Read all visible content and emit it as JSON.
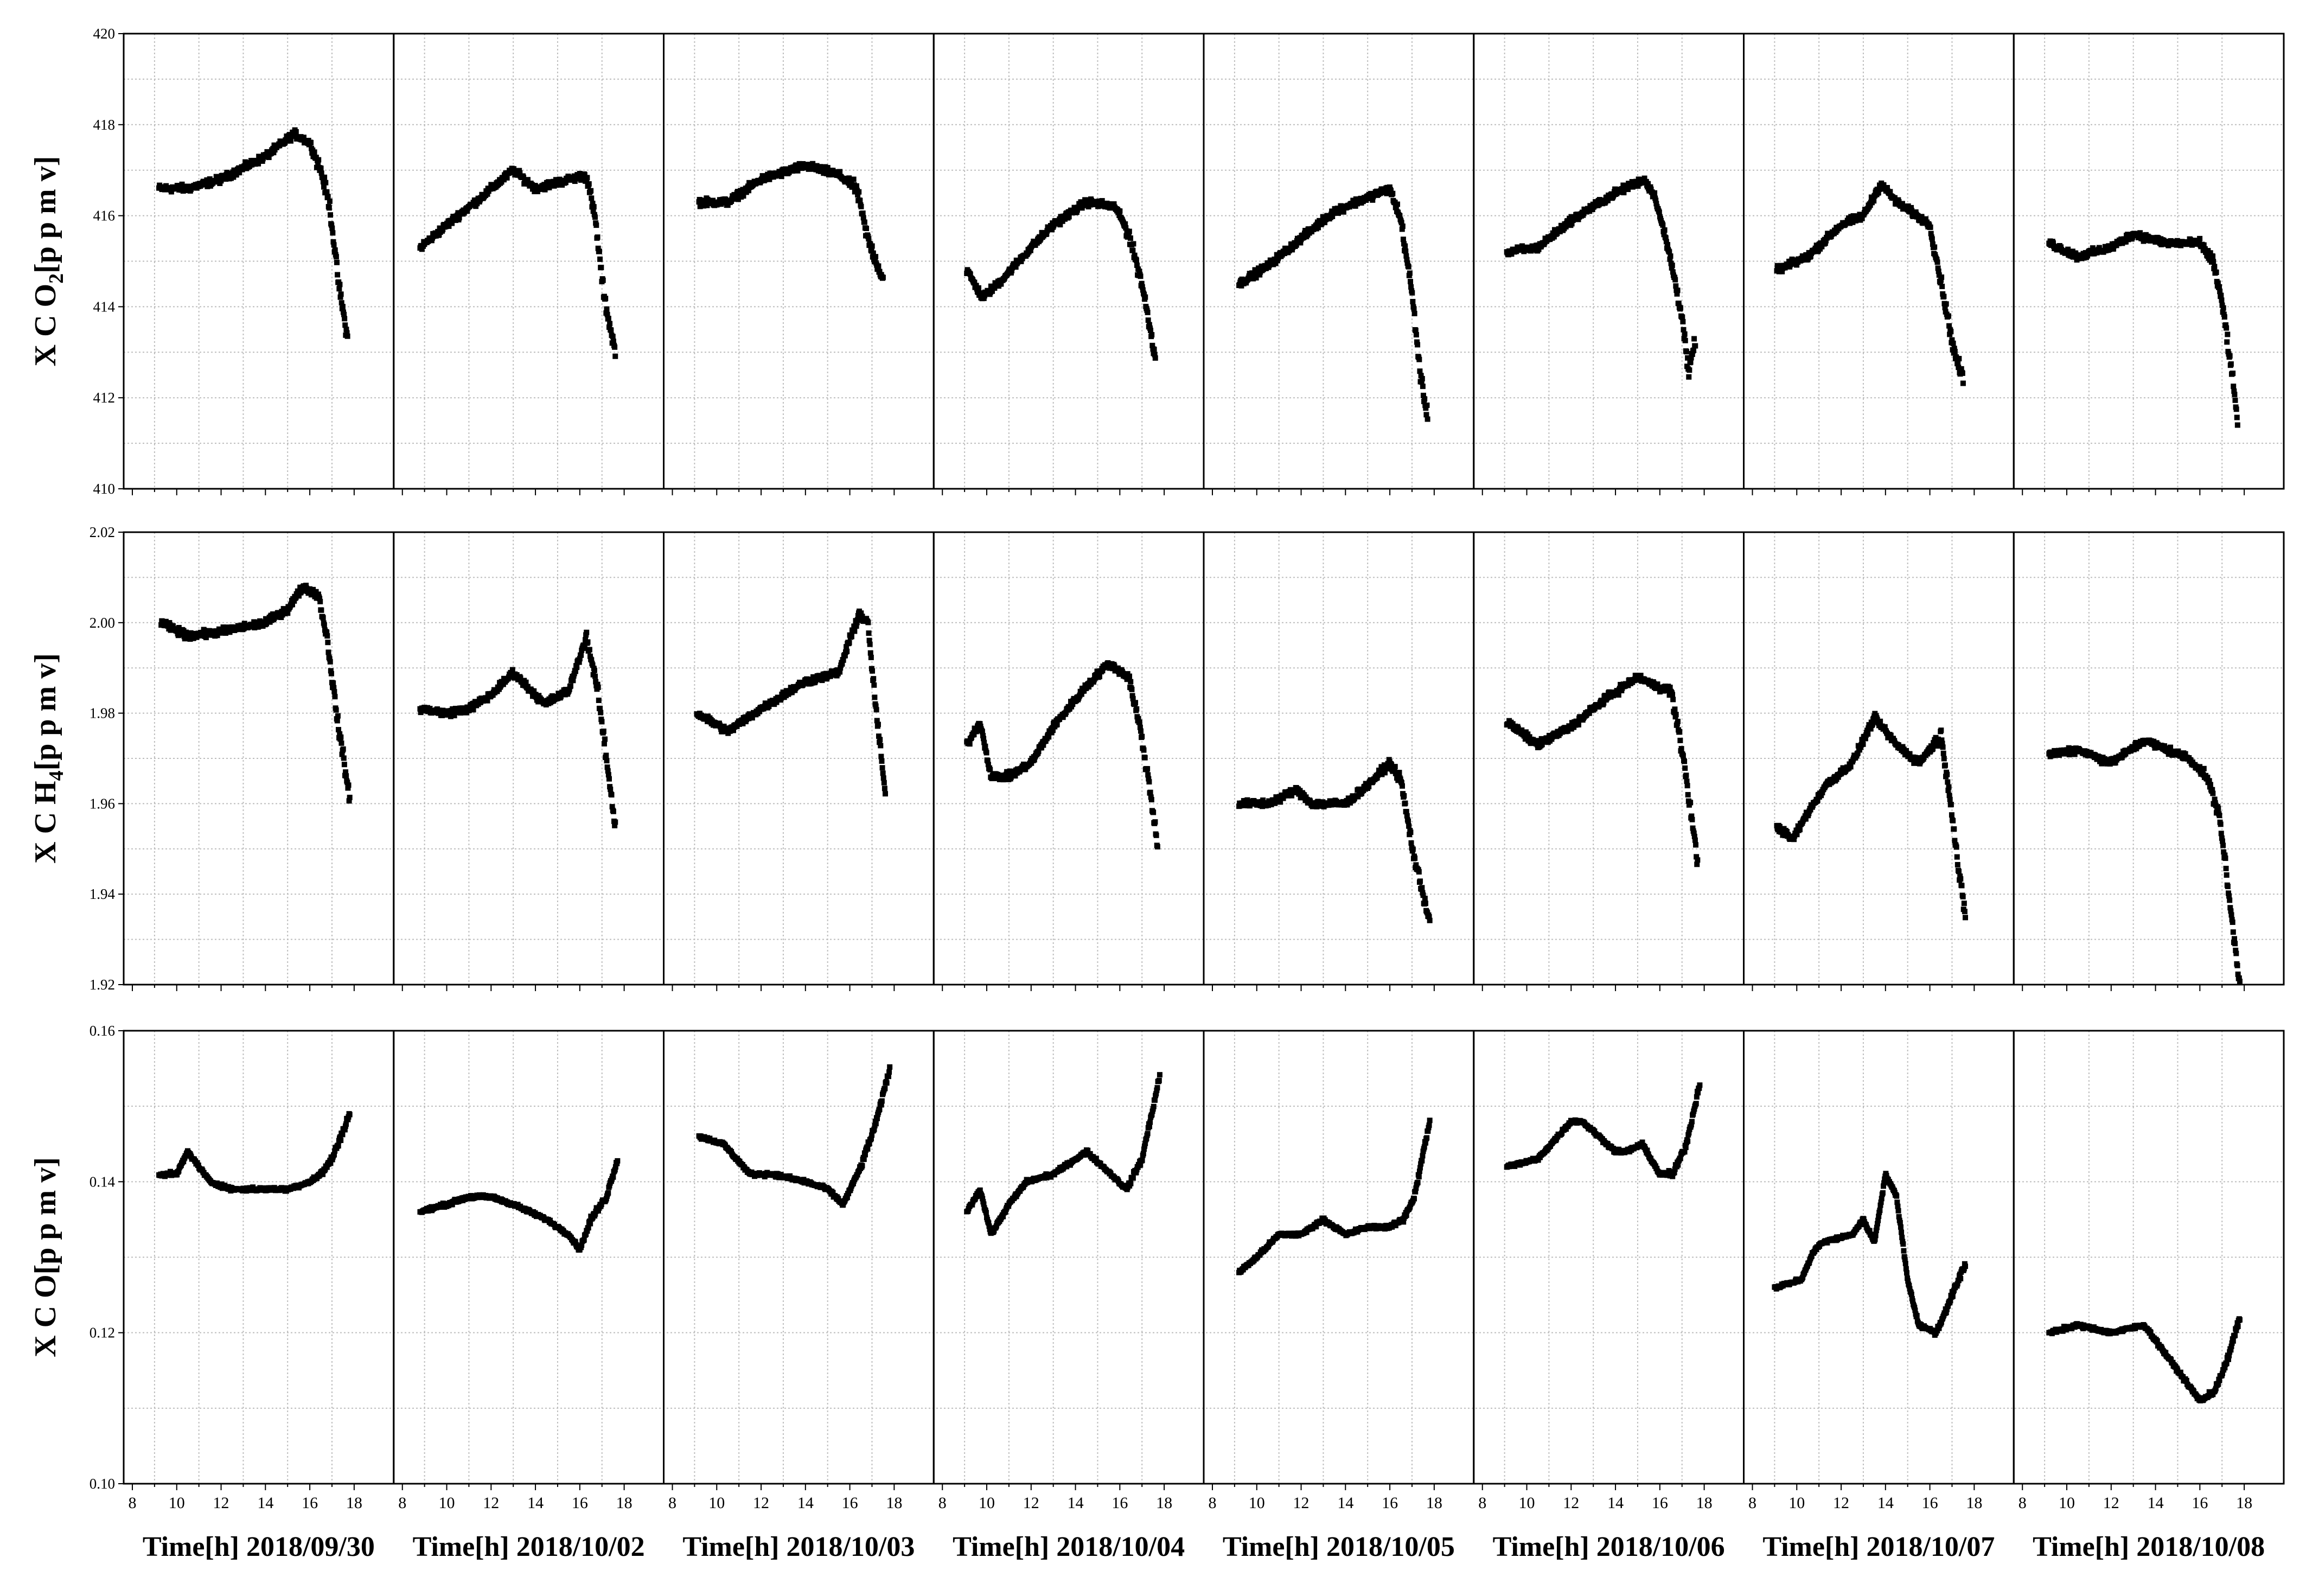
{
  "chart_data": {
    "type": "scatter",
    "layout": "small-multiples grid: 3 rows (species) x 8 columns (days)",
    "x_ticks": [
      8,
      10,
      12,
      14,
      16,
      18
    ],
    "xlim": [
      8,
      19
    ],
    "grid": true,
    "marker": "square",
    "color": "#000000",
    "dates": [
      "Time[h] 2018/09/30",
      "Time[h] 2018/10/02",
      "Time[h] 2018/10/03",
      "Time[h] 2018/10/04",
      "Time[h] 2018/10/05",
      "Time[h] 2018/10/06",
      "Time[h] 2018/10/07",
      "Time[h] 2018/10/08"
    ],
    "rows": [
      {
        "ylabel_main": "X C O",
        "ylabel_sub": "2",
        "ylabel_unit": "[p p m v]",
        "ylim": [
          410,
          420
        ],
        "y_ticks": [
          410,
          412,
          414,
          416,
          418,
          420
        ],
        "y_tick_labels": [
          "410",
          "412",
          "414",
          "416",
          "418",
          "420"
        ],
        "days": [
          {
            "start": 9.2,
            "end": 17.7,
            "x": [
              9.2,
              10.5,
              12,
              14,
              15.3,
              16,
              16.5,
              16.9,
              17.3,
              17.7
            ],
            "y": [
              416.6,
              416.6,
              416.8,
              417.3,
              417.8,
              417.6,
              417.0,
              416.2,
              414.5,
              413.3
            ]
          },
          {
            "start": 8.8,
            "end": 17.6,
            "x": [
              8.8,
              10.5,
              11.3,
              13,
              14,
              16.3,
              16.7,
              17.1,
              17.6
            ],
            "y": [
              415.3,
              416.0,
              416.3,
              417.0,
              416.6,
              416.9,
              415.9,
              414.2,
              413.0
            ]
          },
          {
            "start": 9.2,
            "end": 17.5,
            "x": [
              9.2,
              10.5,
              12,
              14,
              15.5,
              16.3,
              16.8,
              17.5
            ],
            "y": [
              416.3,
              416.3,
              416.8,
              417.1,
              416.9,
              416.6,
              415.5,
              414.6
            ]
          },
          {
            "start": 9.1,
            "end": 17.6,
            "x": [
              9.1,
              9.8,
              10.5,
              12,
              13,
              14.5,
              15.8,
              16.4,
              17,
              17.6
            ],
            "y": [
              414.8,
              414.2,
              414.5,
              415.3,
              415.8,
              416.3,
              416.2,
              415.6,
              414.5,
              412.9
            ]
          },
          {
            "start": 9.2,
            "end": 17.7,
            "x": [
              9.2,
              10.5,
              12,
              13.5,
              15,
              16,
              16.5,
              17,
              17.4,
              17.7
            ],
            "y": [
              414.5,
              414.9,
              415.5,
              416.1,
              416.4,
              416.6,
              415.9,
              414.3,
              412.4,
              411.6
            ]
          },
          {
            "start": 9.1,
            "end": 17.6,
            "x": [
              9.1,
              10.5,
              12,
              14,
              15.3,
              15.8,
              16.5,
              17,
              17.3,
              17.6
            ],
            "y": [
              415.2,
              415.3,
              415.9,
              416.5,
              416.8,
              416.4,
              415.0,
              413.8,
              412.5,
              413.3
            ]
          },
          {
            "start": 9.1,
            "end": 17.5,
            "x": [
              9.1,
              10.5,
              12,
              13,
              13.8,
              14.5,
              16,
              16.6,
              17.1,
              17.5
            ],
            "y": [
              414.8,
              415.1,
              415.8,
              416.0,
              416.7,
              416.3,
              415.8,
              414.3,
              413.0,
              412.4
            ]
          },
          {
            "start": 9.2,
            "end": 17.7,
            "x": [
              9.2,
              10.5,
              12,
              13,
              14.5,
              16,
              16.6,
              17.1,
              17.5,
              17.7
            ],
            "y": [
              415.4,
              415.1,
              415.3,
              415.6,
              415.4,
              415.4,
              415.0,
              413.8,
              412.3,
              411.5
            ]
          }
        ]
      },
      {
        "ylabel_main": "X C H",
        "ylabel_sub": "4",
        "ylabel_unit": "[p p m v]",
        "ylim": [
          1.92,
          2.02
        ],
        "y_ticks": [
          1.92,
          1.94,
          1.96,
          1.98,
          2.0,
          2.02
        ],
        "y_tick_labels": [
          "1.92",
          "1.94",
          "1.96",
          "1.98",
          "2.00",
          "2.02"
        ],
        "days": [
          {
            "start": 9.3,
            "end": 17.8,
            "x": [
              9.3,
              10.5,
              12,
              14,
              15,
              15.7,
              16.4,
              16.8,
              17.2,
              17.8
            ],
            "y": [
              2.0,
              1.997,
              1.998,
              2.0,
              2.003,
              2.008,
              2.006,
              1.996,
              1.98,
              1.961
            ]
          },
          {
            "start": 8.8,
            "end": 17.6,
            "x": [
              8.8,
              10,
              11,
              12,
              13,
              14.4,
              15.5,
              16.3,
              16.8,
              17.2,
              17.6
            ],
            "y": [
              1.981,
              1.98,
              1.981,
              1.984,
              1.989,
              1.982,
              1.985,
              1.997,
              1.985,
              1.97,
              1.955
            ]
          },
          {
            "start": 9.1,
            "end": 17.6,
            "x": [
              9.1,
              10.5,
              12,
              14,
              15.5,
              16.4,
              16.8,
              17.2,
              17.6
            ],
            "y": [
              1.98,
              1.976,
              1.981,
              1.987,
              1.989,
              2.002,
              2.0,
              1.98,
              1.962
            ]
          },
          {
            "start": 9.1,
            "end": 17.7,
            "x": [
              9.1,
              9.7,
              10.2,
              11,
              12,
              13,
              14.5,
              15.5,
              16.4,
              16.9,
              17.3,
              17.7
            ],
            "y": [
              1.973,
              1.978,
              1.966,
              1.966,
              1.969,
              1.977,
              1.986,
              1.991,
              1.988,
              1.977,
              1.965,
              1.951
            ]
          },
          {
            "start": 9.2,
            "end": 17.8,
            "x": [
              9.2,
              10.5,
              11.8,
              12.5,
              14,
              15,
              16,
              16.5,
              17.1,
              17.8
            ],
            "y": [
              1.96,
              1.96,
              1.963,
              1.96,
              1.96,
              1.964,
              1.969,
              1.965,
              1.948,
              1.934
            ]
          },
          {
            "start": 9.1,
            "end": 17.7,
            "x": [
              9.1,
              10.5,
              12,
              13.5,
              15,
              15.8,
              16.5,
              17.1,
              17.7
            ],
            "y": [
              1.978,
              1.973,
              1.977,
              1.983,
              1.988,
              1.986,
              1.985,
              1.969,
              1.947
            ]
          },
          {
            "start": 9.1,
            "end": 17.6,
            "x": [
              9.1,
              9.8,
              10.5,
              11.3,
              12.5,
              13.5,
              14.5,
              15.5,
              16.5,
              16.9,
              17.3,
              17.6
            ],
            "y": [
              1.955,
              1.952,
              1.958,
              1.964,
              1.969,
              1.979,
              1.973,
              1.969,
              1.975,
              1.962,
              1.945,
              1.935
            ]
          },
          {
            "start": 9.2,
            "end": 17.8,
            "x": [
              9.2,
              10.5,
              12,
              13.5,
              14.5,
              15.5,
              16.3,
              16.9,
              17.3,
              17.8
            ],
            "y": [
              1.971,
              1.972,
              1.969,
              1.974,
              1.972,
              1.97,
              1.966,
              1.957,
              1.94,
              1.92
            ]
          }
        ]
      },
      {
        "ylabel_main": "X C O",
        "ylabel_sub": "",
        "ylabel_unit": "[p p m v]",
        "ylim": [
          0.1,
          0.16
        ],
        "y_ticks": [
          0.1,
          0.12,
          0.14,
          0.16
        ],
        "y_tick_labels": [
          "0.10",
          "0.12",
          "0.14",
          "0.16"
        ],
        "days": [
          {
            "start": 9.2,
            "end": 17.8,
            "x": [
              9.2,
              10,
              10.5,
              11.5,
              12.5,
              14,
              15,
              16,
              16.5,
              17,
              17.8
            ],
            "y": [
              0.141,
              0.141,
              0.144,
              0.14,
              0.139,
              0.139,
              0.139,
              0.14,
              0.141,
              0.143,
              0.149
            ]
          },
          {
            "start": 8.8,
            "end": 17.7,
            "x": [
              8.8,
              10,
              11,
              12,
              13,
              14.5,
              15.5,
              16,
              16.5,
              17.2,
              17.7
            ],
            "y": [
              0.136,
              0.137,
              0.138,
              0.138,
              0.137,
              0.135,
              0.133,
              0.131,
              0.135,
              0.138,
              0.143
            ]
          },
          {
            "start": 9.2,
            "end": 17.8,
            "x": [
              9.2,
              10.3,
              11.5,
              12.5,
              14,
              15,
              15.7,
              16.5,
              17.2,
              17.8
            ],
            "y": [
              0.146,
              0.145,
              0.141,
              0.141,
              0.14,
              0.139,
              0.137,
              0.142,
              0.148,
              0.155
            ]
          },
          {
            "start": 9.1,
            "end": 17.8,
            "x": [
              9.1,
              9.7,
              10.2,
              11,
              11.8,
              13,
              14.5,
              15.6,
              16.3,
              17,
              17.8
            ],
            "y": [
              0.136,
              0.139,
              0.133,
              0.137,
              0.14,
              0.141,
              0.144,
              0.141,
              0.139,
              0.143,
              0.154
            ]
          },
          {
            "start": 9.2,
            "end": 17.8,
            "x": [
              9.2,
              10,
              11,
              12,
              13,
              14,
              15,
              16,
              16.6,
              17.1,
              17.8
            ],
            "y": [
              0.128,
              0.13,
              0.133,
              0.133,
              0.135,
              0.133,
              0.134,
              0.134,
              0.135,
              0.138,
              0.148
            ]
          },
          {
            "start": 9.1,
            "end": 17.8,
            "x": [
              9.1,
              10.5,
              12,
              12.5,
              14,
              14.5,
              15.2,
              16,
              16.6,
              17.2,
              17.8
            ],
            "y": [
              0.142,
              0.143,
              0.148,
              0.148,
              0.144,
              0.144,
              0.145,
              0.141,
              0.141,
              0.145,
              0.153
            ]
          },
          {
            "start": 9.0,
            "end": 17.6,
            "x": [
              9.0,
              10.2,
              10.8,
              11.2,
              12.5,
              13,
              13.5,
              14,
              14.5,
              15,
              15.5,
              16.3,
              17,
              17.6
            ],
            "y": [
              0.126,
              0.127,
              0.131,
              0.132,
              0.133,
              0.135,
              0.132,
              0.141,
              0.138,
              0.127,
              0.121,
              0.12,
              0.125,
              0.129
            ]
          },
          {
            "start": 9.2,
            "end": 17.8,
            "x": [
              9.2,
              10.5,
              12,
              13.5,
              14.5,
              15.5,
              16,
              16.6,
              17.2,
              17.8
            ],
            "y": [
              0.12,
              0.121,
              0.12,
              0.121,
              0.117,
              0.113,
              0.111,
              0.112,
              0.116,
              0.122
            ]
          }
        ]
      }
    ]
  }
}
